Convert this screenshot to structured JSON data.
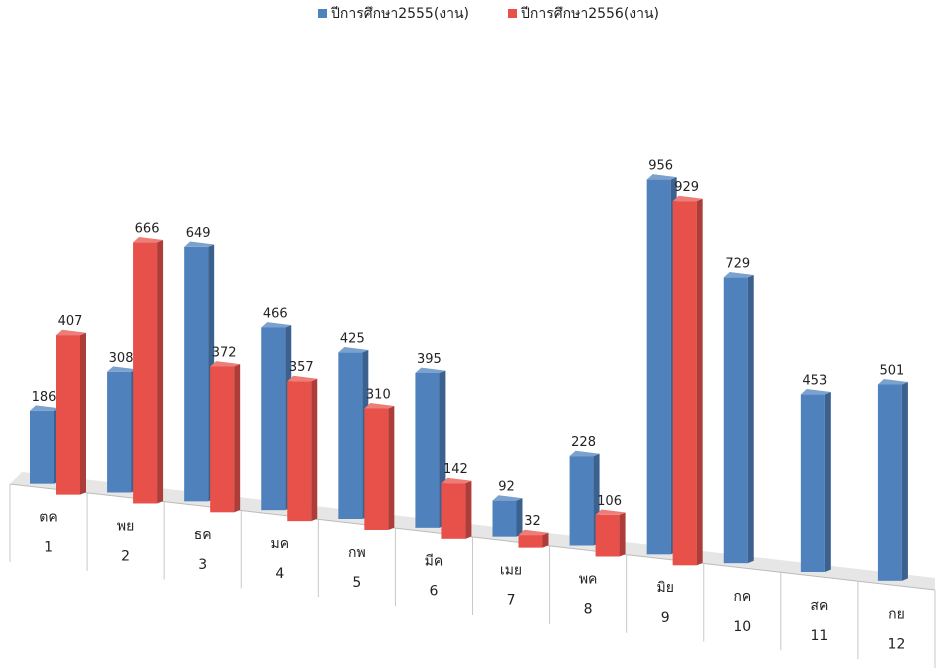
{
  "chart_data": {
    "type": "bar",
    "categories": [
      "ตค",
      "พย",
      "ธค",
      "มค",
      "กพ",
      "มีค",
      "เมย",
      "พค",
      "มิย",
      "กค",
      "สค",
      "กย"
    ],
    "category_numbers": [
      "1",
      "2",
      "3",
      "4",
      "5",
      "6",
      "7",
      "8",
      "9",
      "10",
      "11",
      "12"
    ],
    "series": [
      {
        "name": "ปีการศึกษา2555(งาน)",
        "values": [
          186,
          308,
          649,
          466,
          425,
          395,
          92,
          228,
          956,
          729,
          453,
          501
        ],
        "color": "#4f81bd"
      },
      {
        "name": "ปีการศึกษา2556(งาน)",
        "values": [
          407,
          666,
          372,
          357,
          310,
          142,
          32,
          106,
          929,
          null,
          null,
          null
        ],
        "color": "#e8504a"
      }
    ],
    "data_labels": true,
    "legend": "top-center",
    "grid": false
  }
}
